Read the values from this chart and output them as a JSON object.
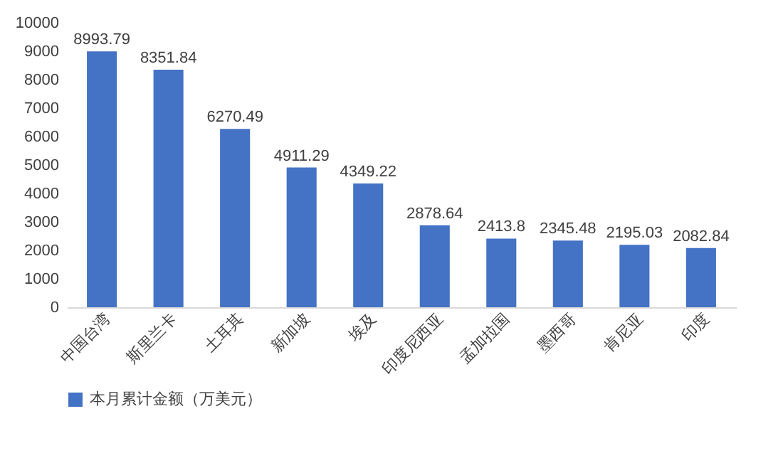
{
  "chart_data": {
    "type": "bar",
    "categories": [
      "中国台湾",
      "斯里兰卡",
      "土耳其",
      "新加坡",
      "埃及",
      "印度尼西亚",
      "孟加拉国",
      "墨西哥",
      "肯尼亚",
      "印度"
    ],
    "series": [
      {
        "name": "本月累计金额（万美元）",
        "color": "#4472c4",
        "values": [
          8993.79,
          8351.84,
          6270.49,
          4911.29,
          4349.22,
          2878.64,
          2413.8,
          2345.48,
          2195.03,
          2082.84
        ]
      }
    ],
    "ylim": [
      0,
      10000
    ],
    "yticks": [
      0,
      1000,
      2000,
      3000,
      4000,
      5000,
      6000,
      7000,
      8000,
      9000,
      10000
    ],
    "grid": false,
    "legend": "bottom",
    "data_labels": true
  }
}
